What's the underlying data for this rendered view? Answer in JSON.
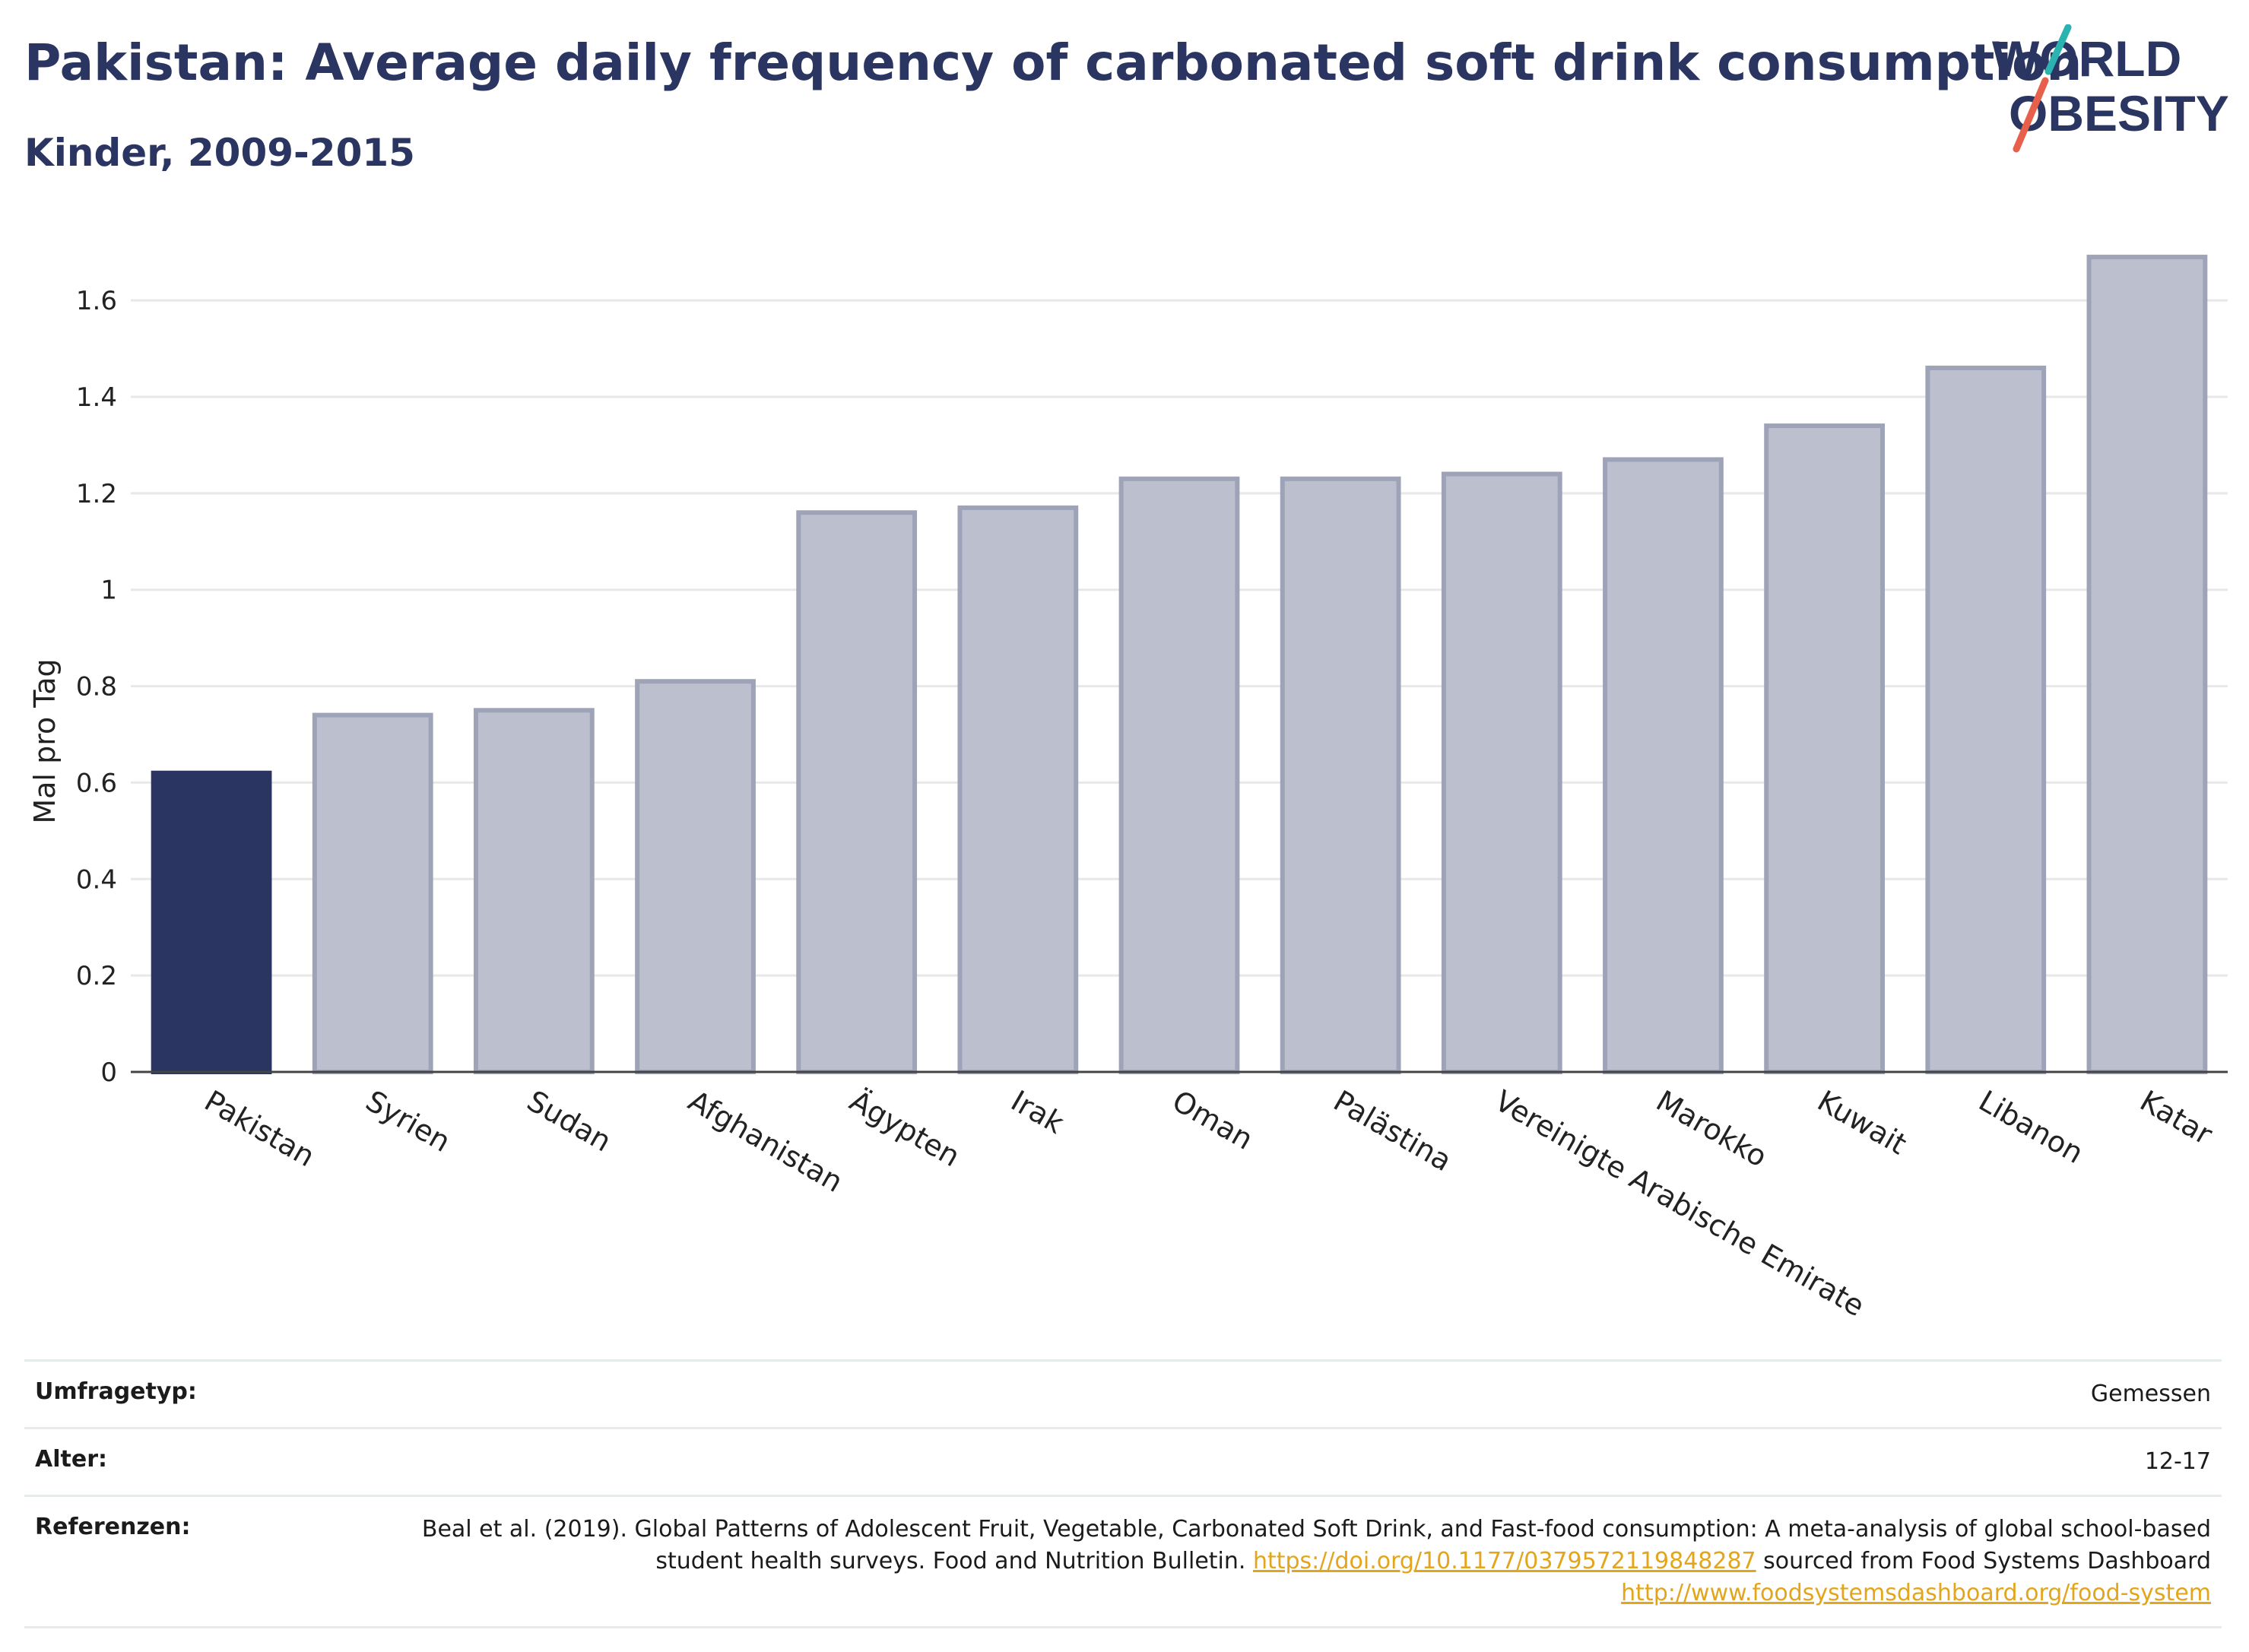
{
  "header": {
    "title": "Pakistan: Average daily frequency of carbonated soft drink consumption",
    "subtitle": "Kinder, 2009-2015"
  },
  "logo": {
    "line1": "WORLD",
    "line2": "OBESITY",
    "slash_colors": [
      "#2ab3b1",
      "#e8604c"
    ]
  },
  "chart_data": {
    "type": "bar",
    "categories": [
      "Pakistan",
      "Syrien",
      "Sudan",
      "Afghanistan",
      "Ägypten",
      "Irak",
      "Oman",
      "Palästina",
      "Vereinigte Arabische Emirate",
      "Marokko",
      "Kuwait",
      "Libanon",
      "Katar"
    ],
    "values": [
      0.62,
      0.74,
      0.75,
      0.81,
      1.16,
      1.17,
      1.23,
      1.23,
      1.24,
      1.27,
      1.34,
      1.46,
      1.69
    ],
    "highlight": "Pakistan",
    "ylabel": "Mal pro Tag",
    "xlabel": "",
    "ylim": [
      0,
      1.75
    ],
    "yticks": [
      0,
      0.2,
      0.4,
      0.6,
      0.8,
      1,
      1.2,
      1.4,
      1.6
    ],
    "ytick_labels": [
      "0",
      "0.2",
      "0.4",
      "0.6",
      "0.8",
      "1",
      "1.2",
      "1.4",
      "1.6"
    ],
    "grid": true,
    "colors": {
      "highlight": "#2b3561",
      "bar_fill": "#bcbfcd",
      "bar_stroke": "#9ea3b8",
      "grid": "#e8e8e8",
      "axis": "#444444"
    }
  },
  "info": {
    "survey_label": "Umfragetyp:",
    "survey_value": "Gemessen",
    "age_label": "Alter:",
    "age_value": "12-17",
    "ref_label": "Referenzen:",
    "ref_text_1": "Beal et al. (2019). Global Patterns of Adolescent Fruit, Vegetable, Carbonated Soft Drink, and Fast-food consumption: A meta-analysis of global school-based student health surveys. Food and Nutrition Bulletin. ",
    "ref_link_1": "https://doi.org/10.1177/0379572119848287",
    "ref_text_2": " sourced from Food Systems Dashboard ",
    "ref_link_2": "http://www.foodsystemsdashboard.org/food-system"
  }
}
